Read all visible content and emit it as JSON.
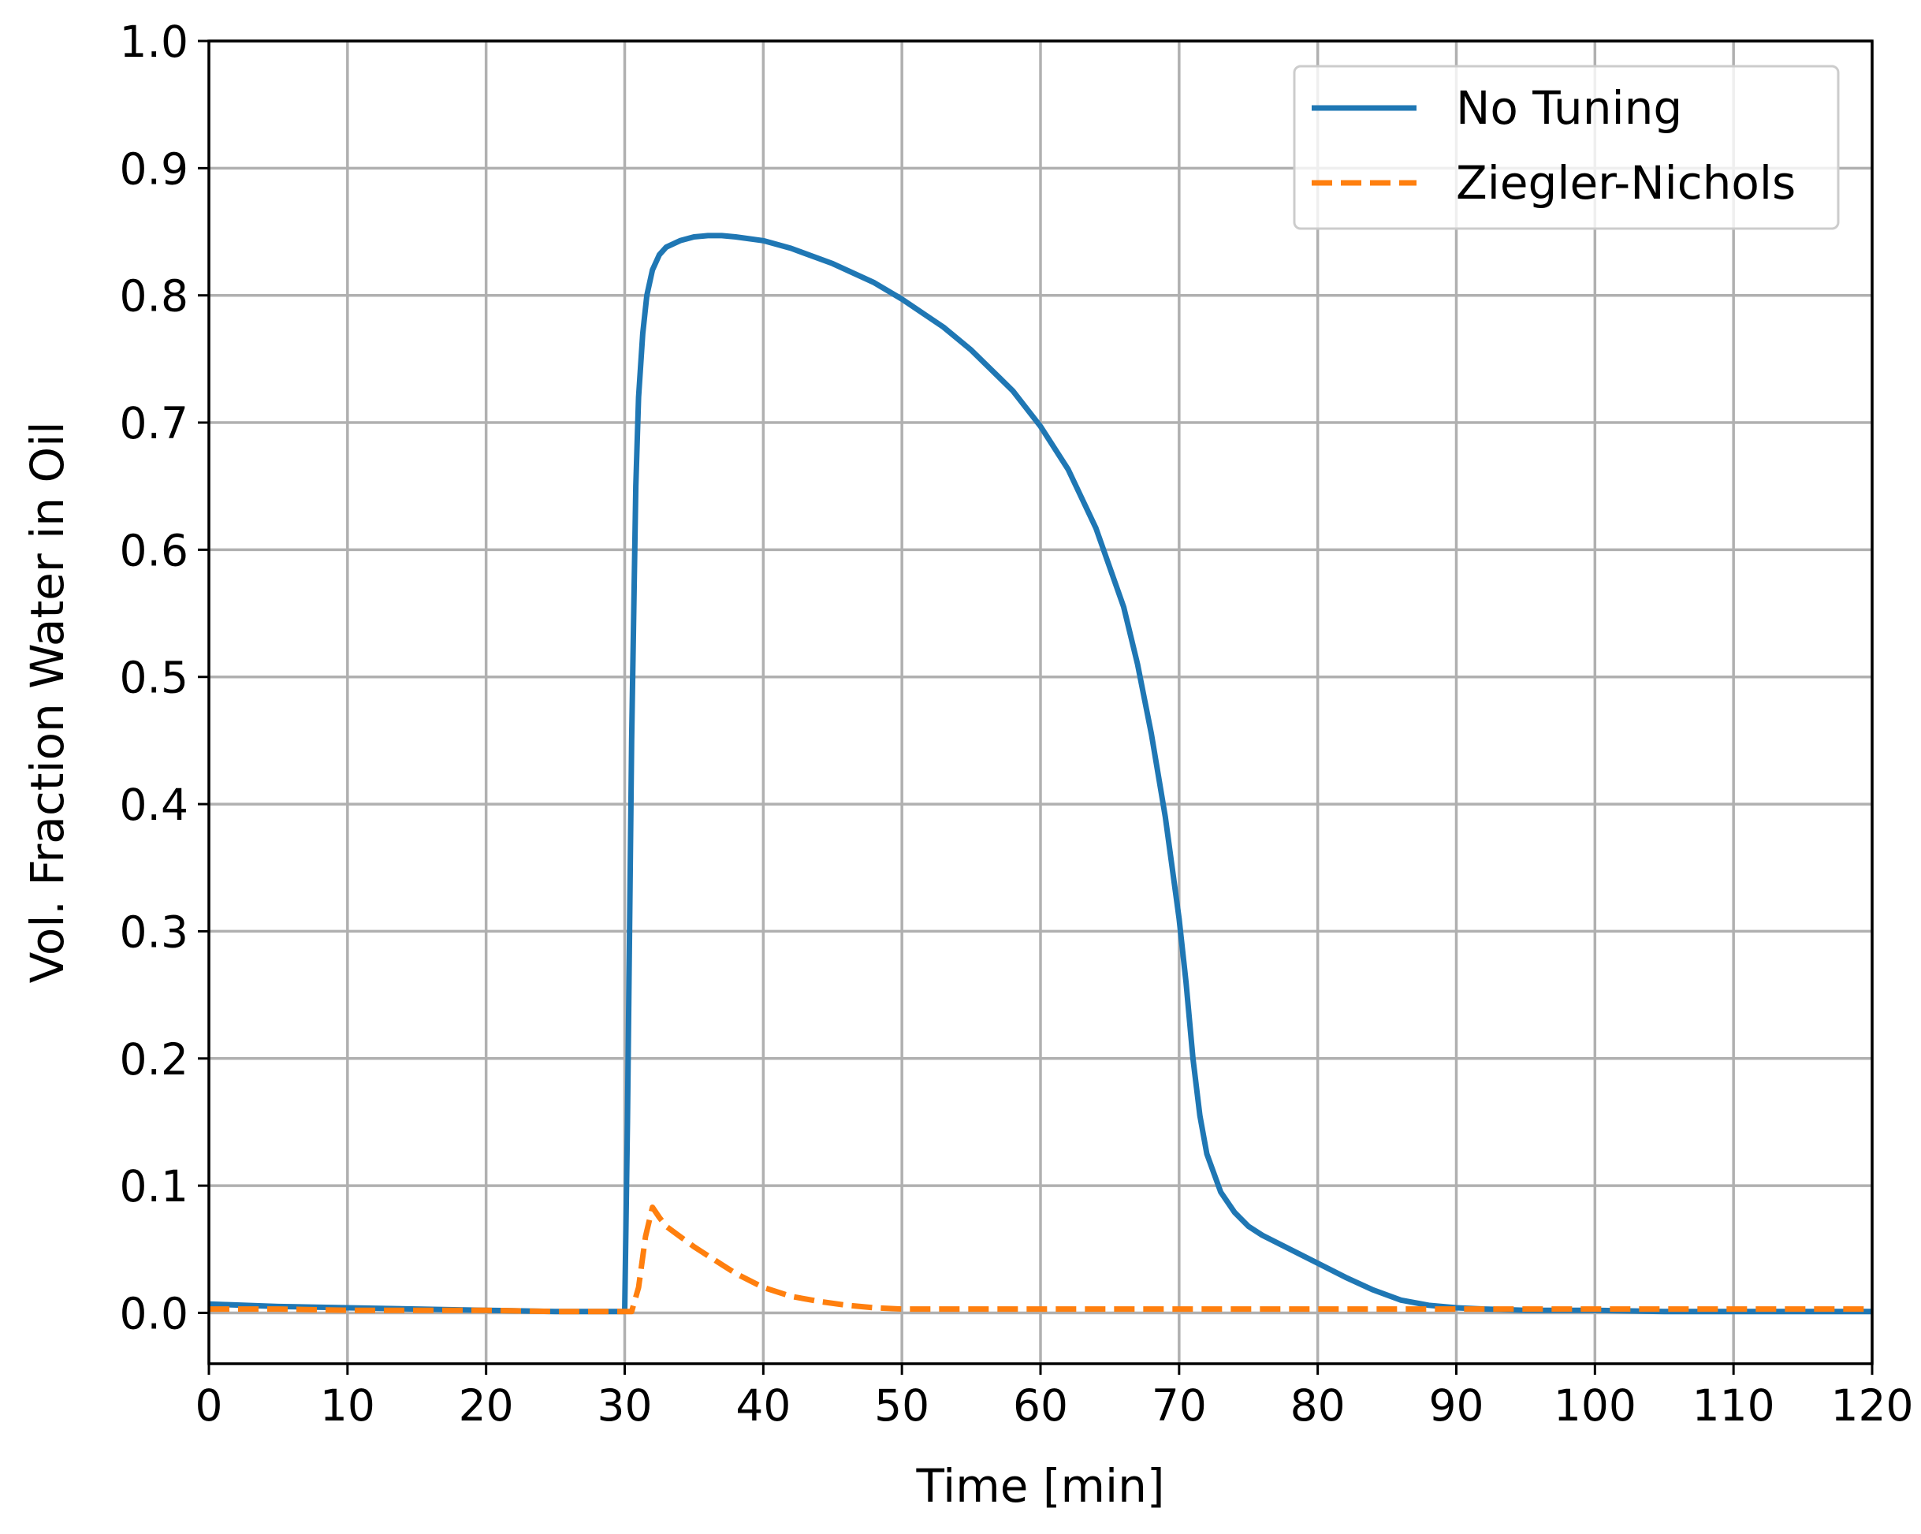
{
  "chart_data": {
    "type": "line",
    "title": "",
    "xlabel": "Time [min]",
    "ylabel": "Vol. Fraction Water in Oil",
    "xlim": [
      0,
      120
    ],
    "ylim": [
      -0.04,
      1.0
    ],
    "xticks": [
      0,
      10,
      20,
      30,
      40,
      50,
      60,
      70,
      80,
      90,
      100,
      110,
      120
    ],
    "xtick_labels": [
      "0",
      "10",
      "20",
      "30",
      "40",
      "50",
      "60",
      "70",
      "80",
      "90",
      "100",
      "110",
      "120"
    ],
    "yticks": [
      0.0,
      0.1,
      0.2,
      0.3,
      0.4,
      0.5,
      0.6,
      0.7,
      0.8,
      0.9,
      1.0
    ],
    "ytick_labels": [
      "0.0",
      "0.1",
      "0.2",
      "0.3",
      "0.4",
      "0.5",
      "0.6",
      "0.7",
      "0.8",
      "0.9",
      "1.0"
    ],
    "grid": true,
    "legend_position": "top-right",
    "series": [
      {
        "name": "No Tuning",
        "color": "#1f77b4",
        "style": "solid",
        "x": [
          0,
          5,
          10,
          15,
          20,
          25,
          29,
          30,
          30.2,
          30.5,
          30.8,
          31.0,
          31.3,
          31.6,
          32.0,
          32.5,
          33,
          34,
          35,
          36,
          37,
          38,
          40,
          42,
          45,
          48,
          50,
          53,
          55,
          58,
          60,
          62,
          64,
          66,
          67,
          68,
          69,
          70,
          70.5,
          71,
          71.5,
          72,
          73,
          74,
          75,
          76,
          78,
          80,
          82,
          84,
          86,
          88,
          90,
          92,
          95,
          100,
          105,
          110,
          115,
          120
        ],
        "y": [
          0.007,
          0.005,
          0.004,
          0.003,
          0.002,
          0.001,
          0.001,
          0.001,
          0.15,
          0.45,
          0.65,
          0.72,
          0.77,
          0.8,
          0.82,
          0.832,
          0.838,
          0.843,
          0.846,
          0.847,
          0.847,
          0.846,
          0.843,
          0.837,
          0.825,
          0.81,
          0.797,
          0.775,
          0.757,
          0.725,
          0.697,
          0.663,
          0.617,
          0.555,
          0.51,
          0.455,
          0.39,
          0.31,
          0.26,
          0.2,
          0.155,
          0.125,
          0.095,
          0.079,
          0.068,
          0.061,
          0.05,
          0.039,
          0.028,
          0.018,
          0.01,
          0.006,
          0.004,
          0.003,
          0.002,
          0.002,
          0.001,
          0.001,
          0.001,
          0.001
        ]
      },
      {
        "name": "Ziegler-Nichols",
        "color": "#ff7f0e",
        "style": "dashed",
        "x": [
          0,
          5,
          10,
          15,
          20,
          25,
          29,
          30,
          30.5,
          31,
          31.5,
          32,
          32.5,
          33,
          34,
          35,
          36,
          37,
          38,
          40,
          42,
          44,
          46,
          48,
          50,
          55,
          60,
          70,
          80,
          90,
          100,
          110,
          120
        ],
        "y": [
          0.003,
          0.003,
          0.002,
          0.002,
          0.002,
          0.001,
          0.001,
          0.001,
          0.001,
          0.02,
          0.06,
          0.083,
          0.075,
          0.068,
          0.06,
          0.052,
          0.045,
          0.038,
          0.031,
          0.02,
          0.013,
          0.009,
          0.006,
          0.004,
          0.003,
          0.003,
          0.003,
          0.003,
          0.003,
          0.003,
          0.003,
          0.003,
          0.003
        ]
      }
    ]
  }
}
